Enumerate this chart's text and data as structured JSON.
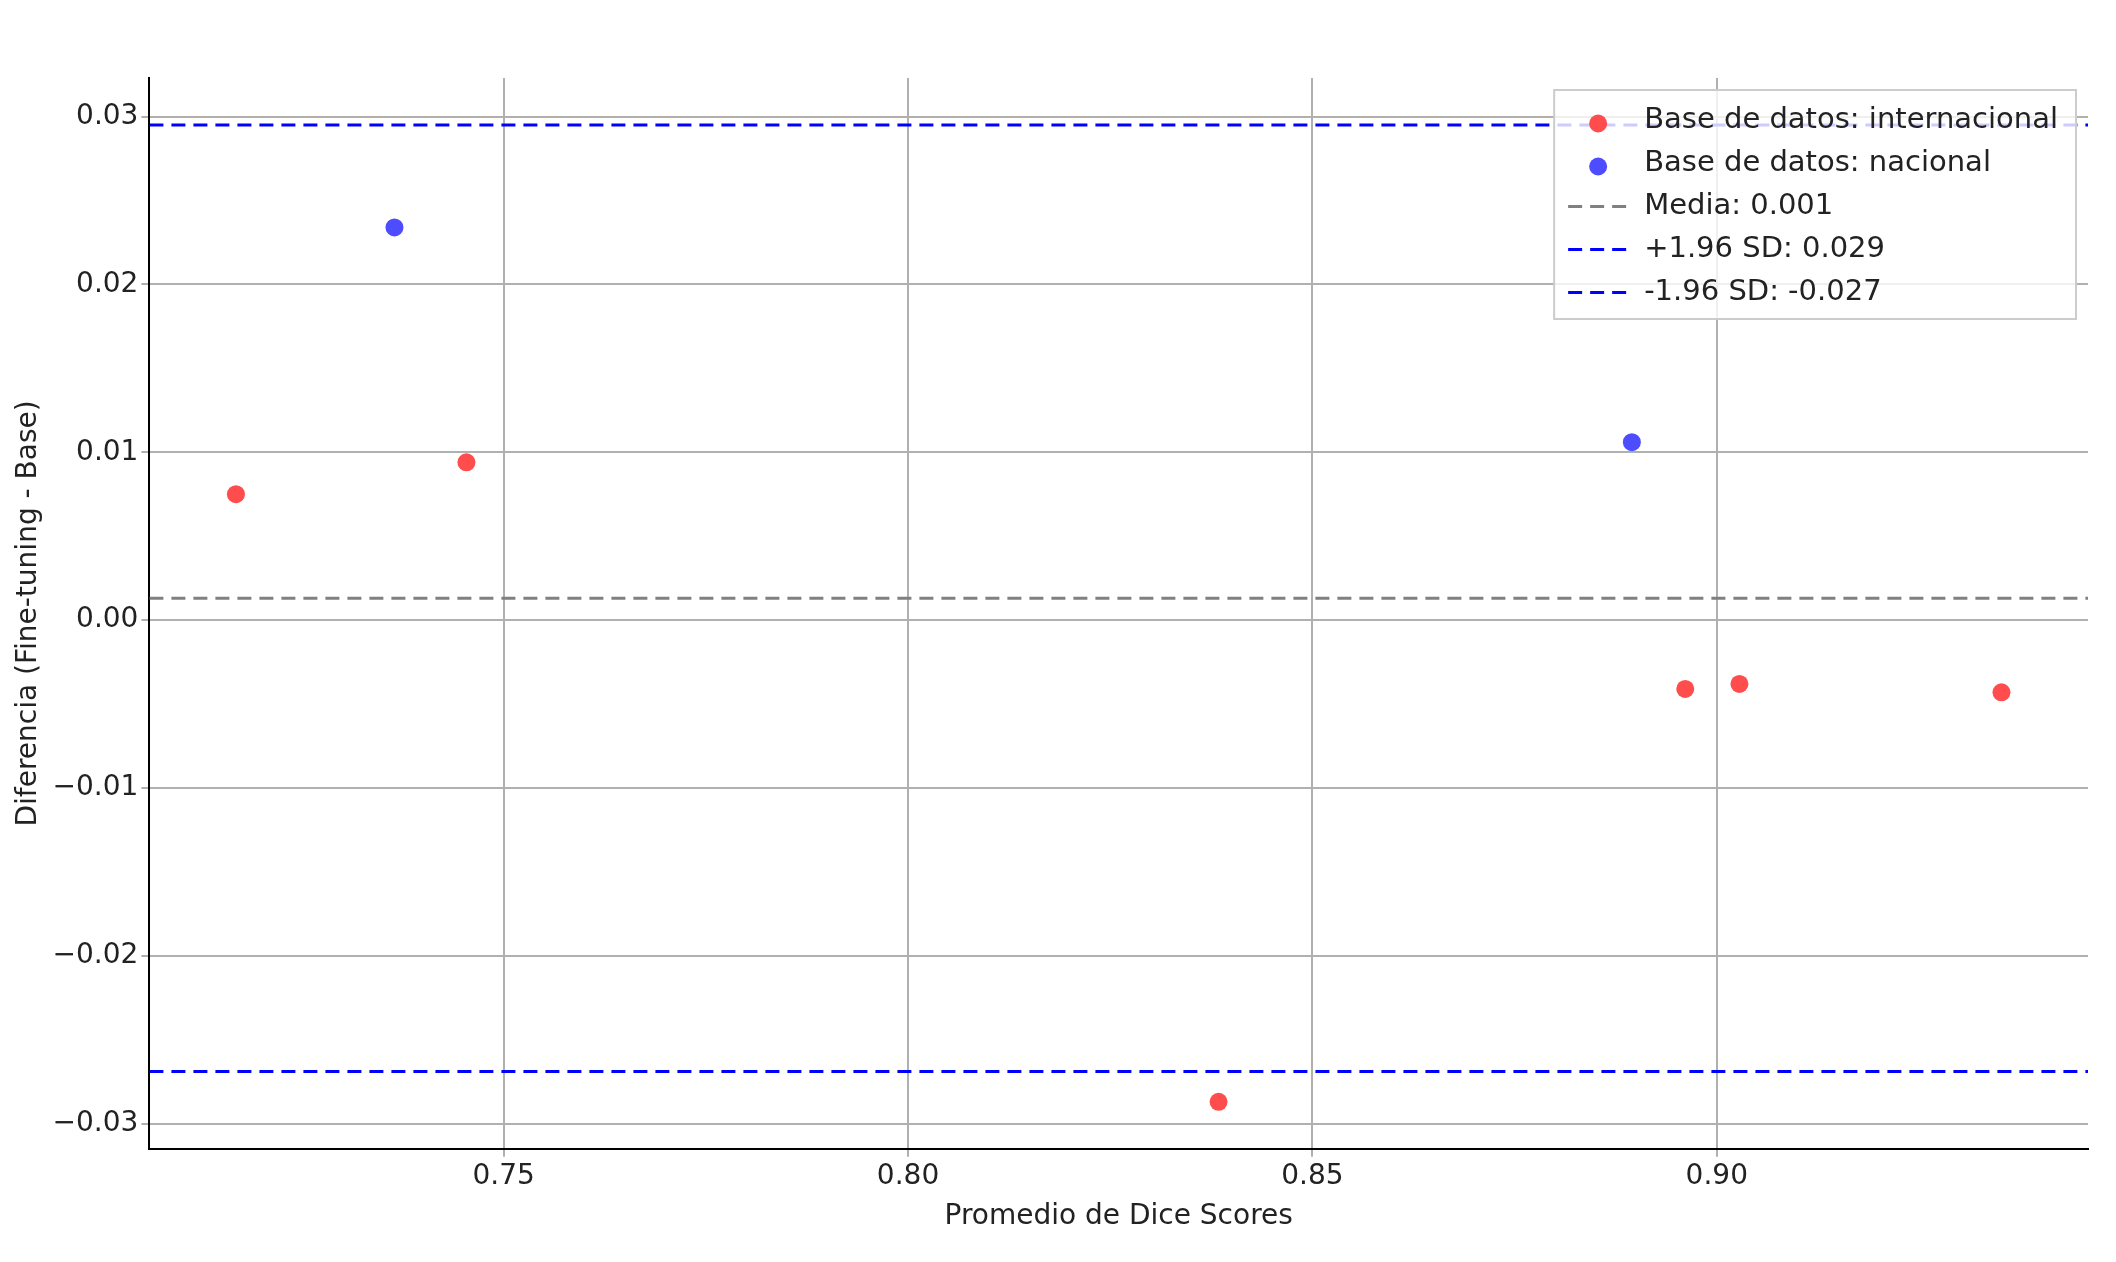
{
  "chart_data": {
    "type": "scatter",
    "xlabel": "Promedio de Dice Scores",
    "ylabel": "Diferencia (Fine-tuning - Base)",
    "series": [
      {
        "name": "Base de datos: internacional",
        "color": "#ff4d4d",
        "x": [
          0.7169,
          0.7454,
          0.8384,
          0.8961,
          0.9028,
          0.9352
        ],
        "values": [
          0.0075,
          0.0094,
          -0.0287,
          -0.0041,
          -0.0038,
          -0.0043
        ]
      },
      {
        "name": "Base de datos: nacional",
        "color": "#4d4dff",
        "x": [
          0.7365,
          0.8895
        ],
        "values": [
          0.0234,
          0.0106
        ]
      }
    ],
    "ref_lines": [
      {
        "axis": "y",
        "value": 0.0013,
        "label": "Media: 0.001",
        "color": "#808080",
        "line_style": "dashed"
      },
      {
        "axis": "y",
        "value": 0.0295,
        "label": "+1.96 SD: 0.029",
        "color": "#0000ff",
        "line_style": "dashed"
      },
      {
        "axis": "y",
        "value": -0.0269,
        "label": "-1.96 SD: -0.027",
        "color": "#0000ff",
        "line_style": "dashed"
      }
    ],
    "xlim": [
      0.7062,
      0.9459
    ],
    "ylim": [
      -0.0315,
      0.0323
    ],
    "xticks": [
      0.75,
      {
        "value": 0.8,
        "label": "0.80"
      },
      0.85,
      {
        "value": 0.9,
        "label": "0.90"
      }
    ],
    "yticks": [
      {
        "value": -0.03,
        "label": "−0.03"
      },
      {
        "value": -0.02,
        "label": "−0.02"
      },
      {
        "value": -0.01,
        "label": "−0.01"
      },
      {
        "value": 0,
        "label": "0.00"
      },
      0.01,
      0.02,
      0.03
    ],
    "grid": true,
    "legend": "top right",
    "marker": "circle"
  }
}
